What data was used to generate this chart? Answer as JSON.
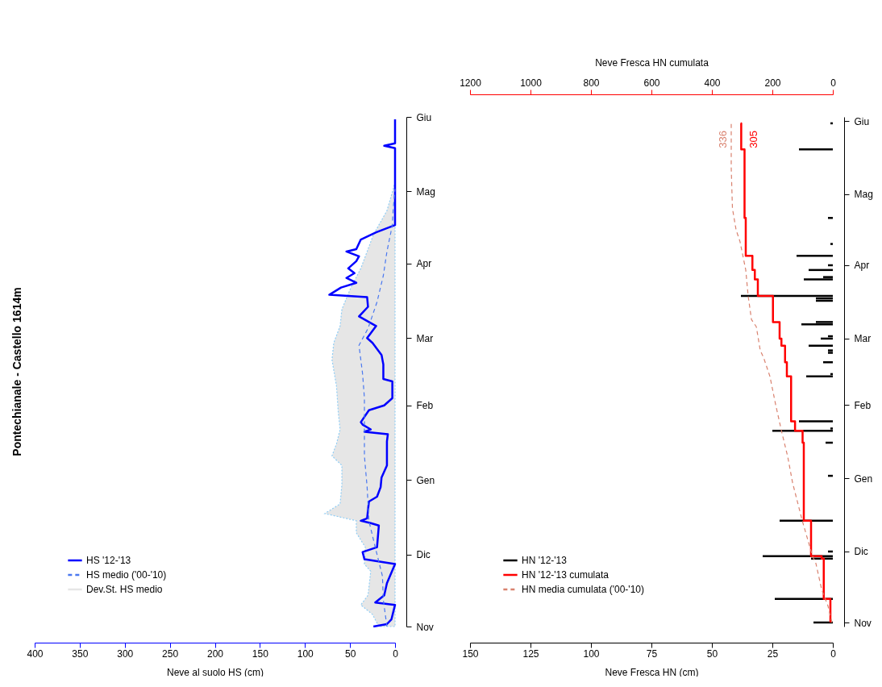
{
  "chart_data": [
    {
      "type": "line",
      "orientation": "horizontal",
      "title": "Pontechianale - Castello 1614m",
      "xlabel": "Neve al suolo HS (cm)",
      "xlim": [
        400,
        0
      ],
      "xticks": [
        400,
        350,
        300,
        250,
        200,
        150,
        100,
        50,
        0
      ],
      "ylim": [
        "2012-11-01",
        "2013-06-01"
      ],
      "yticks": [
        {
          "value": "2012-11-01",
          "label": "Nov"
        },
        {
          "value": "2012-12-01",
          "label": "Dic"
        },
        {
          "value": "2013-01-01",
          "label": "Gen"
        },
        {
          "value": "2013-02-01",
          "label": "Feb"
        },
        {
          "value": "2013-03-01",
          "label": "Mar"
        },
        {
          "value": "2013-04-01",
          "label": "Apr"
        },
        {
          "value": "2013-05-01",
          "label": "Mag"
        },
        {
          "value": "2013-06-01",
          "label": "Giu"
        }
      ],
      "legend": "bottom left",
      "series": [
        {
          "name": "HS '12-'13",
          "color": "#0000ff",
          "line_style": "solid",
          "x": [
            "2012-11-01",
            "2012-11-02",
            "2012-11-04",
            "2012-11-10",
            "2012-11-11",
            "2012-11-14",
            "2012-11-19",
            "2012-11-27",
            "2012-11-29",
            "2012-12-02",
            "2012-12-04",
            "2012-12-13",
            "2012-12-14",
            "2012-12-15",
            "2012-12-16",
            "2012-12-23",
            "2012-12-25",
            "2012-12-29",
            "2013-01-02",
            "2013-01-07",
            "2013-01-17",
            "2013-01-20",
            "2013-01-21",
            "2013-01-22",
            "2013-01-24",
            "2013-01-25",
            "2013-01-30",
            "2013-02-01",
            "2013-02-04",
            "2013-02-11",
            "2013-02-12",
            "2013-02-18",
            "2013-02-22",
            "2013-02-27",
            "2013-03-01",
            "2013-03-06",
            "2013-03-10",
            "2013-03-14",
            "2013-03-18",
            "2013-03-19",
            "2013-03-22",
            "2013-03-24",
            "2013-03-26",
            "2013-03-28",
            "2013-03-30",
            "2013-04-02",
            "2013-04-04",
            "2013-04-06",
            "2013-04-07",
            "2013-04-11",
            "2013-04-14",
            "2013-04-17",
            "2013-05-19",
            "2013-05-20",
            "2013-05-21",
            "2013-05-31"
          ],
          "values": [
            24,
            9,
            4,
            0,
            22,
            12,
            9,
            0,
            34,
            36,
            20,
            18,
            27,
            38,
            31,
            29,
            20,
            16,
            15,
            9,
            9,
            8,
            34,
            27,
            36,
            38,
            29,
            12,
            3,
            3,
            13,
            13,
            15,
            25,
            31,
            21,
            40,
            30,
            31,
            73,
            60,
            43,
            54,
            45,
            52,
            43,
            40,
            54,
            43,
            38,
            21,
            0,
            0,
            12,
            0,
            0
          ]
        },
        {
          "name": "HS medio ('00-'10)",
          "color": "#4a78f0",
          "line_style": "dashed",
          "x": [
            "2012-11-01",
            "2012-11-12",
            "2012-11-22",
            "2012-12-04",
            "2012-12-15",
            "2012-12-29",
            "2013-01-11",
            "2013-02-04",
            "2013-02-14",
            "2013-02-20",
            "2013-02-26",
            "2013-03-05",
            "2013-03-16",
            "2013-03-27",
            "2013-04-06",
            "2013-04-17",
            "2013-04-24",
            "2013-05-02"
          ],
          "values": [
            9,
            13,
            14,
            22,
            29,
            31,
            34,
            34,
            36,
            38,
            40,
            30,
            20,
            13,
            9,
            3,
            2,
            0
          ]
        },
        {
          "name": "Dev.St. HS medio",
          "type": "area",
          "color": "#e6e6e6",
          "x": [
            "2012-11-01",
            "2012-11-06",
            "2012-11-10",
            "2012-11-14",
            "2012-11-24",
            "2012-11-27",
            "2012-12-04",
            "2012-12-10",
            "2012-12-15",
            "2012-12-18",
            "2012-12-22",
            "2012-12-30",
            "2013-01-07",
            "2013-01-11",
            "2013-01-16",
            "2013-01-22",
            "2013-01-29",
            "2013-02-09",
            "2013-02-20",
            "2013-02-27",
            "2013-03-06",
            "2013-03-13",
            "2013-03-22",
            "2013-03-30",
            "2013-04-06",
            "2013-04-13",
            "2013-04-23",
            "2013-05-02",
            "2013-05-05"
          ],
          "values": [
            18,
            25,
            38,
            30,
            27,
            34,
            33,
            43,
            43,
            78,
            61,
            59,
            59,
            70,
            65,
            61,
            63,
            65,
            70,
            68,
            61,
            59,
            49,
            38,
            31,
            24,
            9,
            2,
            0
          ]
        }
      ]
    },
    {
      "type": "bar",
      "orientation": "horizontal",
      "xlabel": "Neve Fresca HN (cm)",
      "x2label": "Neve Fresca HN cumulata",
      "xlim": [
        150,
        0
      ],
      "xticks": [
        150,
        125,
        100,
        75,
        50,
        25,
        0
      ],
      "x2lim": [
        1200,
        0
      ],
      "x2ticks": [
        1200,
        1000,
        800,
        600,
        400,
        200,
        0
      ],
      "ylim": [
        "2012-11-01",
        "2013-06-01"
      ],
      "yticks": [
        {
          "value": "2012-11-01",
          "label": "Nov"
        },
        {
          "value": "2012-12-01",
          "label": "Dic"
        },
        {
          "value": "2013-01-01",
          "label": "Gen"
        },
        {
          "value": "2013-02-01",
          "label": "Feb"
        },
        {
          "value": "2013-03-01",
          "label": "Mar"
        },
        {
          "value": "2013-04-01",
          "label": "Apr"
        },
        {
          "value": "2013-05-01",
          "label": "Mag"
        },
        {
          "value": "2013-06-01",
          "label": "Giu"
        }
      ],
      "legend": "bottom left",
      "annotations": [
        "305",
        "336"
      ],
      "series": [
        {
          "name": "HN '12-'13",
          "color": "#000000",
          "x": [
            "2012-11-01",
            "2012-11-11",
            "2012-11-28",
            "2012-11-29",
            "2012-12-01",
            "2012-12-14",
            "2013-01-02",
            "2013-01-16",
            "2013-01-21",
            "2013-01-22",
            "2013-01-25",
            "2013-02-13",
            "2013-02-14",
            "2013-02-19",
            "2013-02-23",
            "2013-02-24",
            "2013-02-26",
            "2013-03-01",
            "2013-03-02",
            "2013-03-07",
            "2013-03-08",
            "2013-03-17",
            "2013-03-18",
            "2013-03-19",
            "2013-03-26",
            "2013-03-27",
            "2013-03-30",
            "2013-04-01",
            "2013-04-05",
            "2013-04-10",
            "2013-04-21",
            "2013-05-20",
            "2013-05-31"
          ],
          "values": [
            8,
            24,
            9,
            29,
            2,
            22,
            2,
            3,
            25,
            1,
            14,
            11,
            1,
            4,
            2,
            2,
            10,
            5,
            2,
            13,
            7,
            7,
            7,
            38,
            12,
            4,
            10,
            2,
            15,
            1,
            2,
            14,
            1
          ]
        },
        {
          "name": "HN '12-'13 cumulata",
          "type": "step",
          "axis": "x2",
          "color": "#ff0000",
          "line_style": "solid",
          "x": [
            "2012-11-01",
            "2012-11-11",
            "2012-11-28",
            "2012-11-29",
            "2012-12-14",
            "2013-01-16",
            "2013-01-21",
            "2013-01-25",
            "2013-02-13",
            "2013-02-19",
            "2013-02-26",
            "2013-03-01",
            "2013-03-08",
            "2013-03-19",
            "2013-03-26",
            "2013-03-30",
            "2013-04-05",
            "2013-04-21",
            "2013-05-20",
            "2013-05-31"
          ],
          "values": [
            8,
            30,
            37,
            72,
            96,
            100,
            125,
            138,
            152,
            158,
            170,
            176,
            198,
            248,
            258,
            266,
            288,
            292,
            303,
            305
          ]
        },
        {
          "name": "HN media cumulata ('00-'10)",
          "type": "line",
          "axis": "x2",
          "color": "#d9826f",
          "line_style": "dashed",
          "x": [
            "2012-11-01",
            "2012-11-08",
            "2012-11-15",
            "2012-11-26",
            "2012-11-29",
            "2012-12-14",
            "2012-12-30",
            "2013-01-10",
            "2013-01-20",
            "2013-02-01",
            "2013-02-13",
            "2013-02-21",
            "2013-02-24",
            "2013-03-06",
            "2013-03-09",
            "2013-03-19",
            "2013-03-30",
            "2013-04-11",
            "2013-04-16",
            "2013-04-25",
            "2013-05-12",
            "2013-05-31"
          ],
          "values": [
            3,
            16,
            37,
            56,
            67,
            101,
            133,
            149,
            168,
            189,
            208,
            229,
            240,
            253,
            269,
            280,
            288,
            307,
            320,
            332,
            336,
            336
          ]
        }
      ]
    }
  ]
}
